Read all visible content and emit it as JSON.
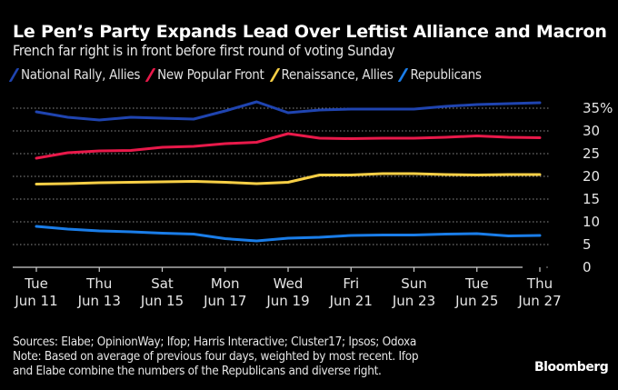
{
  "header": {
    "title": "Le Pen’s Party Expands Lead Over Leftist Alliance and Macron",
    "subtitle": "French far right is in front before first round of voting Sunday"
  },
  "chart_data": {
    "type": "line",
    "title": "Le Pen’s Party Expands Lead Over Leftist Alliance and Macron",
    "subtitle": "French far right is in front before first round of voting Sunday",
    "xlabel": "",
    "ylabel": "",
    "x": [
      "Jun 11",
      "Jun 12",
      "Jun 13",
      "Jun 14",
      "Jun 15",
      "Jun 16",
      "Jun 17",
      "Jun 18",
      "Jun 19",
      "Jun 20",
      "Jun 21",
      "Jun 22",
      "Jun 23",
      "Jun 24",
      "Jun 25",
      "Jun 26",
      "Jun 27"
    ],
    "x_ticks": [
      {
        "index": 0,
        "line1": "Tue",
        "line2": "Jun 11"
      },
      {
        "index": 2,
        "line1": "Thu",
        "line2": "Jun 13"
      },
      {
        "index": 4,
        "line1": "Sat",
        "line2": "Jun 15"
      },
      {
        "index": 6,
        "line1": "Mon",
        "line2": "Jun 17"
      },
      {
        "index": 8,
        "line1": "Wed",
        "line2": "Jun 19"
      },
      {
        "index": 10,
        "line1": "Fri",
        "line2": "Jun 21"
      },
      {
        "index": 12,
        "line1": "Sun",
        "line2": "Jun 23"
      },
      {
        "index": 14,
        "line1": "Tue",
        "line2": "Jun 25"
      },
      {
        "index": 16,
        "line1": "Thu",
        "line2": "Jun 27"
      }
    ],
    "y_ticks": [
      "0",
      "5",
      "10",
      "15",
      "20",
      "25",
      "30",
      "35%"
    ],
    "y_tick_values": [
      0,
      5,
      10,
      15,
      20,
      25,
      30,
      35
    ],
    "ylim": [
      0,
      37
    ],
    "grid": true,
    "legend_position": "top-left",
    "series": [
      {
        "name": "National Rally, Allies",
        "color": "#1f44b0",
        "values": [
          34.2,
          33.0,
          32.4,
          33.0,
          32.8,
          32.6,
          34.4,
          36.4,
          34.0,
          34.6,
          34.8,
          34.8,
          34.8,
          35.4,
          35.8,
          36.0,
          36.2
        ]
      },
      {
        "name": "New Popular Front",
        "color": "#e8194a",
        "values": [
          24.0,
          25.2,
          25.6,
          25.7,
          26.4,
          26.6,
          27.2,
          27.5,
          29.4,
          28.4,
          28.3,
          28.4,
          28.4,
          28.6,
          28.9,
          28.6,
          28.5
        ]
      },
      {
        "name": "Renaissance, Allies",
        "color": "#f7cf46",
        "values": [
          18.3,
          18.4,
          18.6,
          18.7,
          18.8,
          18.9,
          18.7,
          18.4,
          18.7,
          20.3,
          20.3,
          20.6,
          20.6,
          20.4,
          20.3,
          20.4,
          20.4
        ]
      },
      {
        "name": "Republicans",
        "color": "#1a7de8",
        "values": [
          9.0,
          8.4,
          8.0,
          7.8,
          7.5,
          7.3,
          6.3,
          5.8,
          6.4,
          6.6,
          7.0,
          7.1,
          7.1,
          7.3,
          7.4,
          6.9,
          7.0
        ]
      }
    ]
  },
  "footer": {
    "sources": "Sources: Elabe; OpinionWay; Ifop; Harris Interactive; Cluster17; Ipsos; Odoxa",
    "note_line1": "Note: Based on average of previous four days, weighted by most recent. Ifop",
    "note_line2": "and Elabe combine the numbers of the Republicans and diverse right."
  },
  "brand": "Bloomberg"
}
